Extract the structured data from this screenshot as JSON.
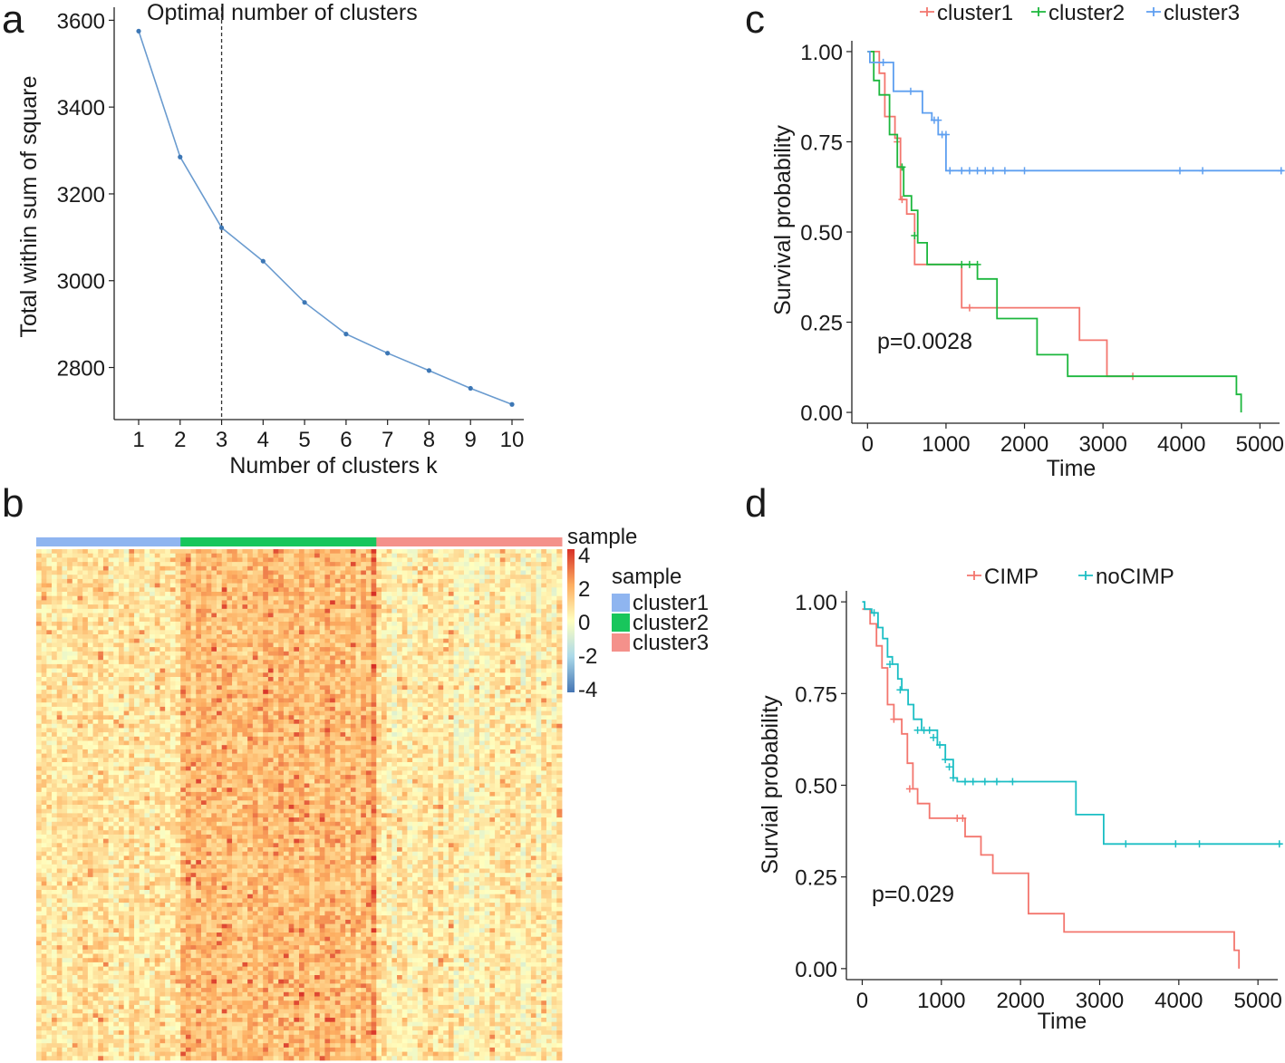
{
  "panels": {
    "a": {
      "letter": "a"
    },
    "b": {
      "letter": "b"
    },
    "c": {
      "letter": "c"
    },
    "d": {
      "letter": "d"
    }
  },
  "chart_data": [
    {
      "id": "a",
      "type": "line",
      "title": "Optimal number of clusters",
      "xlabel": "Number of clusters k",
      "ylabel": "Total within sum of square",
      "x": [
        1,
        2,
        3,
        4,
        5,
        6,
        7,
        8,
        9,
        10
      ],
      "values": [
        3575,
        3285,
        3122,
        3045,
        2950,
        2877,
        2833,
        2793,
        2752,
        2715
      ],
      "xticks": [
        "1",
        "2",
        "3",
        "4",
        "5",
        "6",
        "7",
        "8",
        "9",
        "10"
      ],
      "yticks": [
        2800,
        3000,
        3200,
        3400,
        3600
      ],
      "ylim": [
        2680,
        3630
      ],
      "optimal_k": 3,
      "color": "#6a9bcf"
    },
    {
      "id": "b",
      "type": "heatmap",
      "annotation_title": "sample",
      "legend_title": "sample",
      "scale_ticks": [
        "4",
        "2",
        "0",
        "-2",
        "-4"
      ],
      "scale_range": [
        -4,
        4
      ],
      "groups": [
        {
          "name": "cluster1",
          "color": "#8fb5f0",
          "n_columns": 28,
          "mean": 0.55
        },
        {
          "name": "cluster2",
          "color": "#18c65c",
          "n_columns": 38,
          "mean": 1.55
        },
        {
          "name": "cluster3",
          "color": "#f4918b",
          "n_columns": 36,
          "mean": 0.3
        }
      ],
      "colors": {
        "low": "#4575b4",
        "mid": "#ffffbf",
        "high": "#d73027"
      }
    },
    {
      "id": "c",
      "type": "line",
      "subtype": "kaplan-meier",
      "xlabel": "Time",
      "ylabel": "Survival probability",
      "xticks": [
        0,
        1000,
        2000,
        3000,
        4000,
        5000
      ],
      "yticks": [
        "0.00",
        "0.25",
        "0.50",
        "0.75",
        "1.00"
      ],
      "xlim": [
        -200,
        5250
      ],
      "ylim": [
        -0.03,
        1.03
      ],
      "annotation": "p=0.0028",
      "legend_position": "top",
      "series": [
        {
          "name": "cluster1",
          "color": "#f3766e",
          "steps": [
            [
              0,
              1
            ],
            [
              150,
              1
            ],
            [
              150,
              0.94
            ],
            [
              220,
              0.82
            ],
            [
              350,
              0.76
            ],
            [
              420,
              0.59
            ],
            [
              500,
              0.55
            ],
            [
              600,
              0.41
            ],
            [
              1100,
              0.41
            ],
            [
              1200,
              0.29
            ],
            [
              2700,
              0.29
            ],
            [
              2700,
              0.2
            ],
            [
              3050,
              0.2
            ],
            [
              3050,
              0.1
            ],
            [
              3380,
              0.1
            ]
          ],
          "censored": [
            [
              380,
              0.75
            ],
            [
              440,
              0.59
            ],
            [
              1300,
              0.29
            ],
            [
              3380,
              0.1
            ]
          ]
        },
        {
          "name": "cluster2",
          "color": "#1cb73d",
          "steps": [
            [
              0,
              1
            ],
            [
              80,
              0.92
            ],
            [
              150,
              0.88
            ],
            [
              280,
              0.77
            ],
            [
              380,
              0.68
            ],
            [
              460,
              0.6
            ],
            [
              560,
              0.56
            ],
            [
              640,
              0.47
            ],
            [
              760,
              0.41
            ],
            [
              1400,
              0.41
            ],
            [
              1400,
              0.37
            ],
            [
              1650,
              0.31
            ],
            [
              1650,
              0.26
            ],
            [
              2160,
              0.26
            ],
            [
              2160,
              0.16
            ],
            [
              2550,
              0.16
            ],
            [
              2550,
              0.1
            ],
            [
              4700,
              0.1
            ],
            [
              4700,
              0.05
            ],
            [
              4760,
              0.0
            ]
          ],
          "censored": [
            [
              440,
              0.68
            ],
            [
              600,
              0.49
            ],
            [
              1200,
              0.41
            ],
            [
              1300,
              0.41
            ],
            [
              1400,
              0.41
            ]
          ]
        },
        {
          "name": "cluster3",
          "color": "#5e9ff0",
          "steps": [
            [
              0,
              1
            ],
            [
              30,
              0.97
            ],
            [
              330,
              0.97
            ],
            [
              330,
              0.89
            ],
            [
              700,
              0.89
            ],
            [
              700,
              0.83
            ],
            [
              820,
              0.81
            ],
            [
              900,
              0.77
            ],
            [
              1000,
              0.77
            ],
            [
              1000,
              0.67
            ],
            [
              5300,
              0.67
            ]
          ],
          "censored": [
            [
              200,
              0.97
            ],
            [
              550,
              0.89
            ],
            [
              850,
              0.81
            ],
            [
              900,
              0.81
            ],
            [
              950,
              0.77
            ],
            [
              1000,
              0.77
            ],
            [
              1050,
              0.67
            ],
            [
              1200,
              0.67
            ],
            [
              1300,
              0.67
            ],
            [
              1400,
              0.67
            ],
            [
              1500,
              0.67
            ],
            [
              1600,
              0.67
            ],
            [
              1750,
              0.67
            ],
            [
              2000,
              0.67
            ],
            [
              3980,
              0.67
            ],
            [
              4270,
              0.67
            ],
            [
              5270,
              0.67
            ]
          ]
        }
      ]
    },
    {
      "id": "d",
      "type": "line",
      "subtype": "kaplan-meier",
      "xlabel": "Time",
      "ylabel": "Survial probability",
      "xticks": [
        0,
        1000,
        2000,
        3000,
        4000,
        5000
      ],
      "yticks": [
        "0.00",
        "0.25",
        "0.50",
        "0.75",
        "1.00"
      ],
      "xlim": [
        -200,
        5250
      ],
      "ylim": [
        -0.03,
        1.03
      ],
      "annotation": "p=0.029",
      "legend_position": "top",
      "series": [
        {
          "name": "CIMP",
          "color": "#f3766e",
          "steps": [
            [
              0,
              0.98
            ],
            [
              100,
              0.98
            ],
            [
              100,
              0.94
            ],
            [
              180,
              0.88
            ],
            [
              250,
              0.82
            ],
            [
              320,
              0.72
            ],
            [
              400,
              0.68
            ],
            [
              500,
              0.64
            ],
            [
              570,
              0.56
            ],
            [
              640,
              0.49
            ],
            [
              700,
              0.45
            ],
            [
              850,
              0.41
            ],
            [
              1300,
              0.41
            ],
            [
              1300,
              0.36
            ],
            [
              1500,
              0.36
            ],
            [
              1500,
              0.31
            ],
            [
              1650,
              0.31
            ],
            [
              1650,
              0.26
            ],
            [
              2100,
              0.26
            ],
            [
              2100,
              0.15
            ],
            [
              2550,
              0.15
            ],
            [
              2550,
              0.1
            ],
            [
              4700,
              0.1
            ],
            [
              4700,
              0.05
            ],
            [
              4760,
              0.0
            ]
          ],
          "censored": [
            [
              400,
              0.68
            ],
            [
              600,
              0.49
            ],
            [
              1200,
              0.41
            ],
            [
              1270,
              0.41
            ]
          ]
        },
        {
          "name": "noCIMP",
          "color": "#1bbec4",
          "steps": [
            [
              0,
              1
            ],
            [
              30,
              0.98
            ],
            [
              120,
              0.97
            ],
            [
              200,
              0.93
            ],
            [
              260,
              0.9
            ],
            [
              320,
              0.85
            ],
            [
              380,
              0.83
            ],
            [
              450,
              0.79
            ],
            [
              500,
              0.76
            ],
            [
              580,
              0.72
            ],
            [
              650,
              0.68
            ],
            [
              750,
              0.65
            ],
            [
              850,
              0.65
            ],
            [
              950,
              0.61
            ],
            [
              1050,
              0.57
            ],
            [
              1150,
              0.52
            ],
            [
              1200,
              0.51
            ],
            [
              2700,
              0.51
            ],
            [
              2700,
              0.42
            ],
            [
              3050,
              0.42
            ],
            [
              3050,
              0.34
            ],
            [
              5300,
              0.34
            ]
          ],
          "censored": [
            [
              150,
              0.97
            ],
            [
              350,
              0.83
            ],
            [
              480,
              0.76
            ],
            [
              700,
              0.65
            ],
            [
              780,
              0.65
            ],
            [
              850,
              0.65
            ],
            [
              900,
              0.63
            ],
            [
              980,
              0.61
            ],
            [
              1050,
              0.57
            ],
            [
              1100,
              0.55
            ],
            [
              1150,
              0.52
            ],
            [
              1300,
              0.51
            ],
            [
              1400,
              0.51
            ],
            [
              1550,
              0.51
            ],
            [
              1700,
              0.51
            ],
            [
              1900,
              0.51
            ],
            [
              3330,
              0.34
            ],
            [
              3960,
              0.34
            ],
            [
              4260,
              0.34
            ],
            [
              5270,
              0.34
            ]
          ]
        }
      ]
    }
  ]
}
